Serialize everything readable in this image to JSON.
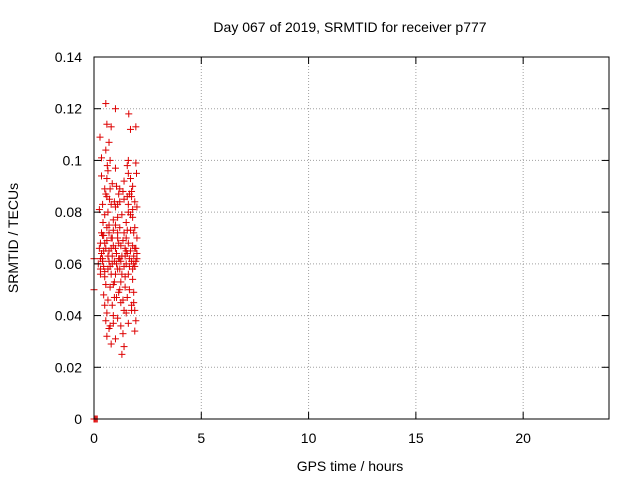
{
  "chart_data": {
    "type": "scatter",
    "title": "Day 067 of 2019, SRMTID for receiver p777",
    "xlabel": "GPS time / hours",
    "ylabel": "SRMTID / TECUs",
    "xlim": [
      0,
      24
    ],
    "ylim": [
      0,
      0.14
    ],
    "xticks": [
      0,
      5,
      10,
      15,
      20
    ],
    "xtick_labels": [
      "0",
      "5",
      "10",
      "15",
      "20"
    ],
    "yticks": [
      0,
      0.02,
      0.04,
      0.06,
      0.08,
      0.1,
      0.12,
      0.14
    ],
    "ytick_labels": [
      "0",
      "0.02",
      "0.04",
      "0.06",
      "0.08",
      "0.1",
      "0.12",
      "0.14"
    ],
    "grid": true,
    "marker": "plus",
    "colors": {
      "series": "#dd0000",
      "grid": "#a0a0a0",
      "axes": "#000000"
    },
    "series": [
      {
        "name": "p777",
        "points": [
          [
            0.0,
            0.0
          ],
          [
            0.05,
            0.0
          ],
          [
            0.1,
            0.0
          ],
          [
            0.15,
            0.0
          ],
          [
            0.0,
            0.062
          ],
          [
            0.0,
            0.05
          ],
          [
            0.2,
            0.06
          ],
          [
            0.25,
            0.081
          ],
          [
            0.3,
            0.058
          ],
          [
            0.28,
            0.109
          ],
          [
            0.35,
            0.101
          ],
          [
            0.3,
            0.068
          ],
          [
            0.35,
            0.072
          ],
          [
            0.4,
            0.062
          ],
          [
            0.42,
            0.076
          ],
          [
            0.45,
            0.071
          ],
          [
            0.5,
            0.055
          ],
          [
            0.55,
            0.122
          ],
          [
            0.6,
            0.114
          ],
          [
            0.55,
            0.104
          ],
          [
            0.6,
            0.093
          ],
          [
            0.62,
            0.098
          ],
          [
            0.65,
            0.08
          ],
          [
            0.7,
            0.065
          ],
          [
            0.7,
            0.107
          ],
          [
            0.75,
            0.1
          ],
          [
            0.8,
            0.113
          ],
          [
            0.72,
            0.085
          ],
          [
            0.8,
            0.07
          ],
          [
            0.85,
            0.06
          ],
          [
            0.9,
            0.052
          ],
          [
            0.95,
            0.047
          ],
          [
            0.5,
            0.044
          ],
          [
            0.55,
            0.038
          ],
          [
            0.6,
            0.032
          ],
          [
            0.75,
            0.036
          ],
          [
            0.8,
            0.029
          ],
          [
            0.9,
            0.04
          ],
          [
            1.0,
            0.12
          ],
          [
            1.05,
            0.09
          ],
          [
            1.1,
            0.083
          ],
          [
            1.0,
            0.075
          ],
          [
            1.15,
            0.068
          ],
          [
            1.2,
            0.062
          ],
          [
            1.1,
            0.058
          ],
          [
            1.2,
            0.05
          ],
          [
            1.25,
            0.045
          ],
          [
            1.3,
            0.025
          ],
          [
            1.35,
            0.033
          ],
          [
            1.4,
            0.042
          ],
          [
            1.45,
            0.055
          ],
          [
            1.5,
            0.065
          ],
          [
            1.55,
            0.073
          ],
          [
            1.6,
            0.08
          ],
          [
            1.65,
            0.087
          ],
          [
            1.7,
            0.093
          ],
          [
            1.55,
            0.098
          ],
          [
            1.6,
            0.1
          ],
          [
            1.62,
            0.118
          ],
          [
            1.7,
            0.112
          ],
          [
            1.75,
            0.086
          ],
          [
            1.8,
            0.078
          ],
          [
            1.85,
            0.072
          ],
          [
            1.9,
            0.066
          ],
          [
            1.95,
            0.061
          ],
          [
            1.8,
            0.054
          ],
          [
            1.85,
            0.045
          ],
          [
            1.9,
            0.042
          ],
          [
            1.95,
            0.038
          ],
          [
            1.9,
            0.034
          ],
          [
            1.95,
            0.113
          ],
          [
            1.98,
            0.095
          ],
          [
            2.0,
            0.082
          ],
          [
            2.0,
            0.07
          ],
          [
            0.3,
            0.062
          ],
          [
            0.35,
            0.064
          ],
          [
            0.4,
            0.061
          ],
          [
            0.45,
            0.059
          ],
          [
            0.5,
            0.057
          ],
          [
            0.55,
            0.066
          ],
          [
            0.6,
            0.069
          ],
          [
            0.65,
            0.063
          ],
          [
            0.7,
            0.061
          ],
          [
            0.75,
            0.059
          ],
          [
            0.8,
            0.066
          ],
          [
            0.85,
            0.063
          ],
          [
            0.9,
            0.067
          ],
          [
            0.95,
            0.061
          ],
          [
            1.0,
            0.066
          ],
          [
            1.05,
            0.064
          ],
          [
            1.1,
            0.07
          ],
          [
            1.15,
            0.062
          ],
          [
            1.2,
            0.058
          ],
          [
            1.25,
            0.067
          ],
          [
            1.3,
            0.063
          ],
          [
            1.35,
            0.069
          ],
          [
            1.4,
            0.059
          ],
          [
            1.45,
            0.066
          ],
          [
            1.5,
            0.06
          ],
          [
            1.55,
            0.064
          ],
          [
            1.6,
            0.068
          ],
          [
            1.65,
            0.062
          ],
          [
            1.7,
            0.065
          ],
          [
            1.75,
            0.061
          ],
          [
            1.8,
            0.067
          ],
          [
            1.85,
            0.063
          ],
          [
            1.9,
            0.059
          ],
          [
            1.95,
            0.066
          ],
          [
            2.0,
            0.062
          ],
          [
            0.4,
            0.083
          ],
          [
            0.5,
            0.079
          ],
          [
            0.6,
            0.086
          ],
          [
            0.7,
            0.075
          ],
          [
            0.8,
            0.083
          ],
          [
            0.9,
            0.077
          ],
          [
            1.0,
            0.082
          ],
          [
            1.1,
            0.078
          ],
          [
            1.2,
            0.084
          ],
          [
            1.3,
            0.079
          ],
          [
            1.4,
            0.085
          ],
          [
            1.5,
            0.076
          ],
          [
            1.6,
            0.083
          ],
          [
            1.7,
            0.079
          ],
          [
            1.8,
            0.081
          ],
          [
            0.45,
            0.048
          ],
          [
            0.55,
            0.052
          ],
          [
            0.65,
            0.046
          ],
          [
            0.75,
            0.051
          ],
          [
            0.85,
            0.044
          ],
          [
            0.95,
            0.053
          ],
          [
            1.05,
            0.047
          ],
          [
            1.15,
            0.049
          ],
          [
            1.25,
            0.053
          ],
          [
            1.35,
            0.046
          ],
          [
            1.45,
            0.051
          ],
          [
            1.55,
            0.047
          ],
          [
            1.65,
            0.05
          ],
          [
            1.75,
            0.044
          ],
          [
            1.85,
            0.049
          ],
          [
            0.6,
            0.041
          ],
          [
            0.7,
            0.035
          ],
          [
            0.9,
            0.037
          ],
          [
            1.0,
            0.031
          ],
          [
            1.1,
            0.039
          ],
          [
            1.25,
            0.036
          ],
          [
            1.4,
            0.028
          ],
          [
            1.5,
            0.041
          ],
          [
            1.6,
            0.037
          ],
          [
            1.75,
            0.042
          ],
          [
            0.35,
            0.094
          ],
          [
            0.5,
            0.089
          ],
          [
            0.65,
            0.096
          ],
          [
            0.85,
            0.091
          ],
          [
            1.0,
            0.097
          ],
          [
            1.2,
            0.089
          ],
          [
            1.4,
            0.092
          ],
          [
            1.6,
            0.095
          ],
          [
            1.8,
            0.09
          ],
          [
            1.95,
            0.099
          ],
          [
            0.3,
            0.056
          ],
          [
            0.4,
            0.071
          ],
          [
            0.5,
            0.068
          ],
          [
            0.6,
            0.074
          ],
          [
            0.7,
            0.072
          ],
          [
            0.8,
            0.056
          ],
          [
            0.9,
            0.073
          ],
          [
            1.0,
            0.056
          ],
          [
            1.1,
            0.072
          ],
          [
            1.2,
            0.074
          ],
          [
            1.3,
            0.056
          ],
          [
            1.4,
            0.072
          ],
          [
            1.5,
            0.07
          ],
          [
            1.6,
            0.056
          ],
          [
            1.7,
            0.073
          ],
          [
            1.8,
            0.058
          ],
          [
            1.9,
            0.074
          ],
          [
            2.0,
            0.064
          ],
          [
            0.25,
            0.066
          ],
          [
            0.45,
            0.065
          ],
          [
            0.65,
            0.058
          ],
          [
            0.85,
            0.07
          ],
          [
            1.05,
            0.06
          ],
          [
            1.25,
            0.061
          ],
          [
            1.45,
            0.063
          ],
          [
            1.65,
            0.059
          ],
          [
            1.85,
            0.06
          ],
          [
            0.55,
            0.087
          ],
          [
            0.75,
            0.089
          ],
          [
            0.95,
            0.084
          ],
          [
            1.15,
            0.087
          ],
          [
            1.35,
            0.088
          ],
          [
            1.55,
            0.086
          ],
          [
            1.75,
            0.088
          ],
          [
            1.9,
            0.084
          ]
        ]
      }
    ]
  }
}
